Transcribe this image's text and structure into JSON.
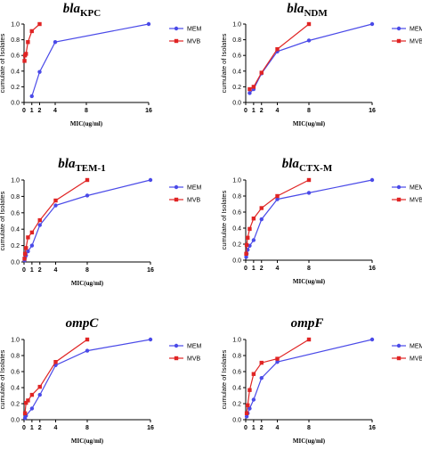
{
  "colors": {
    "MEM": "#4a4ae8",
    "MVB": "#e02424"
  },
  "chart_data": [
    {
      "type": "line",
      "title": "bla",
      "title_sub": "KPC",
      "xlabel": "MIC(ug/ml)",
      "ylabel": "cumulate of Isolates",
      "xticks": [
        "0",
        "1",
        "2",
        "4",
        "8",
        "16"
      ],
      "yticks": [
        "0.0",
        "0.2",
        "0.4",
        "0.6",
        "0.8",
        "1.0"
      ],
      "xlim": [
        0,
        16
      ],
      "ylim": [
        0,
        1
      ],
      "legend_position": "right",
      "series": [
        {
          "name": "MEM",
          "x": [
            1,
            2,
            4,
            16
          ],
          "y": [
            0.08,
            0.39,
            0.77,
            1.0
          ]
        },
        {
          "name": "MVB",
          "x": [
            0.0625,
            0.125,
            0.25,
            0.5,
            1,
            2
          ],
          "y": [
            0.53,
            0.6,
            0.62,
            0.77,
            0.91,
            1.0
          ]
        }
      ]
    },
    {
      "type": "line",
      "title": "bla",
      "title_sub": "NDM",
      "xlabel": "MIC(ug/ml)",
      "ylabel": "cumulate of Isolates",
      "xticks": [
        "0",
        "1",
        "2",
        "4",
        "8",
        "16"
      ],
      "yticks": [
        "0.0",
        "0.2",
        "0.4",
        "0.6",
        "0.8",
        "1.0"
      ],
      "xlim": [
        0,
        16
      ],
      "ylim": [
        0,
        1
      ],
      "legend_position": "right",
      "series": [
        {
          "name": "MEM",
          "x": [
            0.5,
            1,
            2,
            4,
            8,
            16
          ],
          "y": [
            0.12,
            0.17,
            0.37,
            0.65,
            0.79,
            1.0
          ]
        },
        {
          "name": "MVB",
          "x": [
            0.5,
            1,
            2,
            4,
            8
          ],
          "y": [
            0.17,
            0.2,
            0.38,
            0.68,
            1.0
          ]
        }
      ]
    },
    {
      "type": "line",
      "title": "bla",
      "title_sub": "TEM-1",
      "xlabel": "MIC(ug/ml)",
      "ylabel": "cumulate of Isolates",
      "xticks": [
        "0",
        "1",
        "2",
        "4",
        "8",
        "16"
      ],
      "yticks": [
        "0.0",
        "0.2",
        "0.4",
        "0.6",
        "0.8",
        "1.0"
      ],
      "xlim": [
        0,
        16
      ],
      "ylim": [
        0,
        1
      ],
      "legend_position": "right",
      "series": [
        {
          "name": "MEM",
          "x": [
            0.0625,
            0.125,
            0.25,
            0.5,
            1,
            2,
            4,
            8,
            16
          ],
          "y": [
            0.02,
            0.05,
            0.08,
            0.13,
            0.2,
            0.45,
            0.69,
            0.81,
            1.0
          ]
        },
        {
          "name": "MVB",
          "x": [
            0.0625,
            0.125,
            0.25,
            0.5,
            1,
            2,
            4,
            8
          ],
          "y": [
            0.04,
            0.1,
            0.17,
            0.3,
            0.36,
            0.51,
            0.75,
            1.0
          ]
        }
      ]
    },
    {
      "type": "line",
      "title": "bla",
      "title_sub": "CTX-M",
      "xlabel": "MIC(ug/ml)",
      "ylabel": "cumulate of Isolates",
      "xticks": [
        "0",
        "1",
        "2",
        "4",
        "8",
        "16"
      ],
      "yticks": [
        "0.0",
        "0.2",
        "0.4",
        "0.6",
        "0.8",
        "1.0"
      ],
      "xlim": [
        0,
        16
      ],
      "ylim": [
        0,
        1
      ],
      "legend_position": "right",
      "series": [
        {
          "name": "MEM",
          "x": [
            0.0625,
            0.125,
            0.25,
            0.5,
            1,
            2,
            4,
            8,
            16
          ],
          "y": [
            0.04,
            0.08,
            0.13,
            0.18,
            0.25,
            0.51,
            0.76,
            0.84,
            1.0
          ]
        },
        {
          "name": "MVB",
          "x": [
            0.0625,
            0.125,
            0.25,
            0.5,
            1,
            2,
            4,
            8
          ],
          "y": [
            0.08,
            0.19,
            0.28,
            0.39,
            0.52,
            0.65,
            0.8,
            1.0
          ]
        }
      ]
    },
    {
      "type": "line",
      "title": "ompC",
      "title_sub": "",
      "xlabel": "MIC(ug/ml)",
      "ylabel": "cumulate of Isolates",
      "xticks": [
        "0",
        "1",
        "2",
        "4",
        "8",
        "16"
      ],
      "yticks": [
        "0.0",
        "0.2",
        "0.4",
        "0.6",
        "0.8",
        "1.0"
      ],
      "xlim": [
        0,
        16
      ],
      "ylim": [
        0,
        1
      ],
      "legend_position": "right",
      "series": [
        {
          "name": "MEM",
          "x": [
            0.125,
            0.25,
            1,
            2,
            4,
            8,
            16
          ],
          "y": [
            0.02,
            0.05,
            0.14,
            0.31,
            0.68,
            0.86,
            1.0
          ]
        },
        {
          "name": "MVB",
          "x": [
            0.125,
            0.25,
            0.5,
            1,
            2,
            4,
            8
          ],
          "y": [
            0.08,
            0.21,
            0.24,
            0.31,
            0.41,
            0.72,
            1.0
          ]
        }
      ]
    },
    {
      "type": "line",
      "title": "ompF",
      "title_sub": "",
      "xlabel": "MIC(ug/ml)",
      "ylabel": "cumulate of Isolates",
      "xticks": [
        "0",
        "1",
        "2",
        "4",
        "8",
        "16"
      ],
      "yticks": [
        "0.0",
        "0.2",
        "0.4",
        "0.6",
        "0.8",
        "1.0"
      ],
      "xlim": [
        0,
        16
      ],
      "ylim": [
        0,
        1
      ],
      "legend_position": "right",
      "series": [
        {
          "name": "MEM",
          "x": [
            0.125,
            0.25,
            0.5,
            1,
            2,
            4,
            16
          ],
          "y": [
            0.04,
            0.08,
            0.14,
            0.25,
            0.52,
            0.72,
            1.0
          ]
        },
        {
          "name": "MVB",
          "x": [
            0.125,
            0.25,
            0.5,
            1,
            2,
            4,
            8
          ],
          "y": [
            0.08,
            0.18,
            0.37,
            0.57,
            0.71,
            0.76,
            1.0
          ]
        }
      ]
    }
  ]
}
